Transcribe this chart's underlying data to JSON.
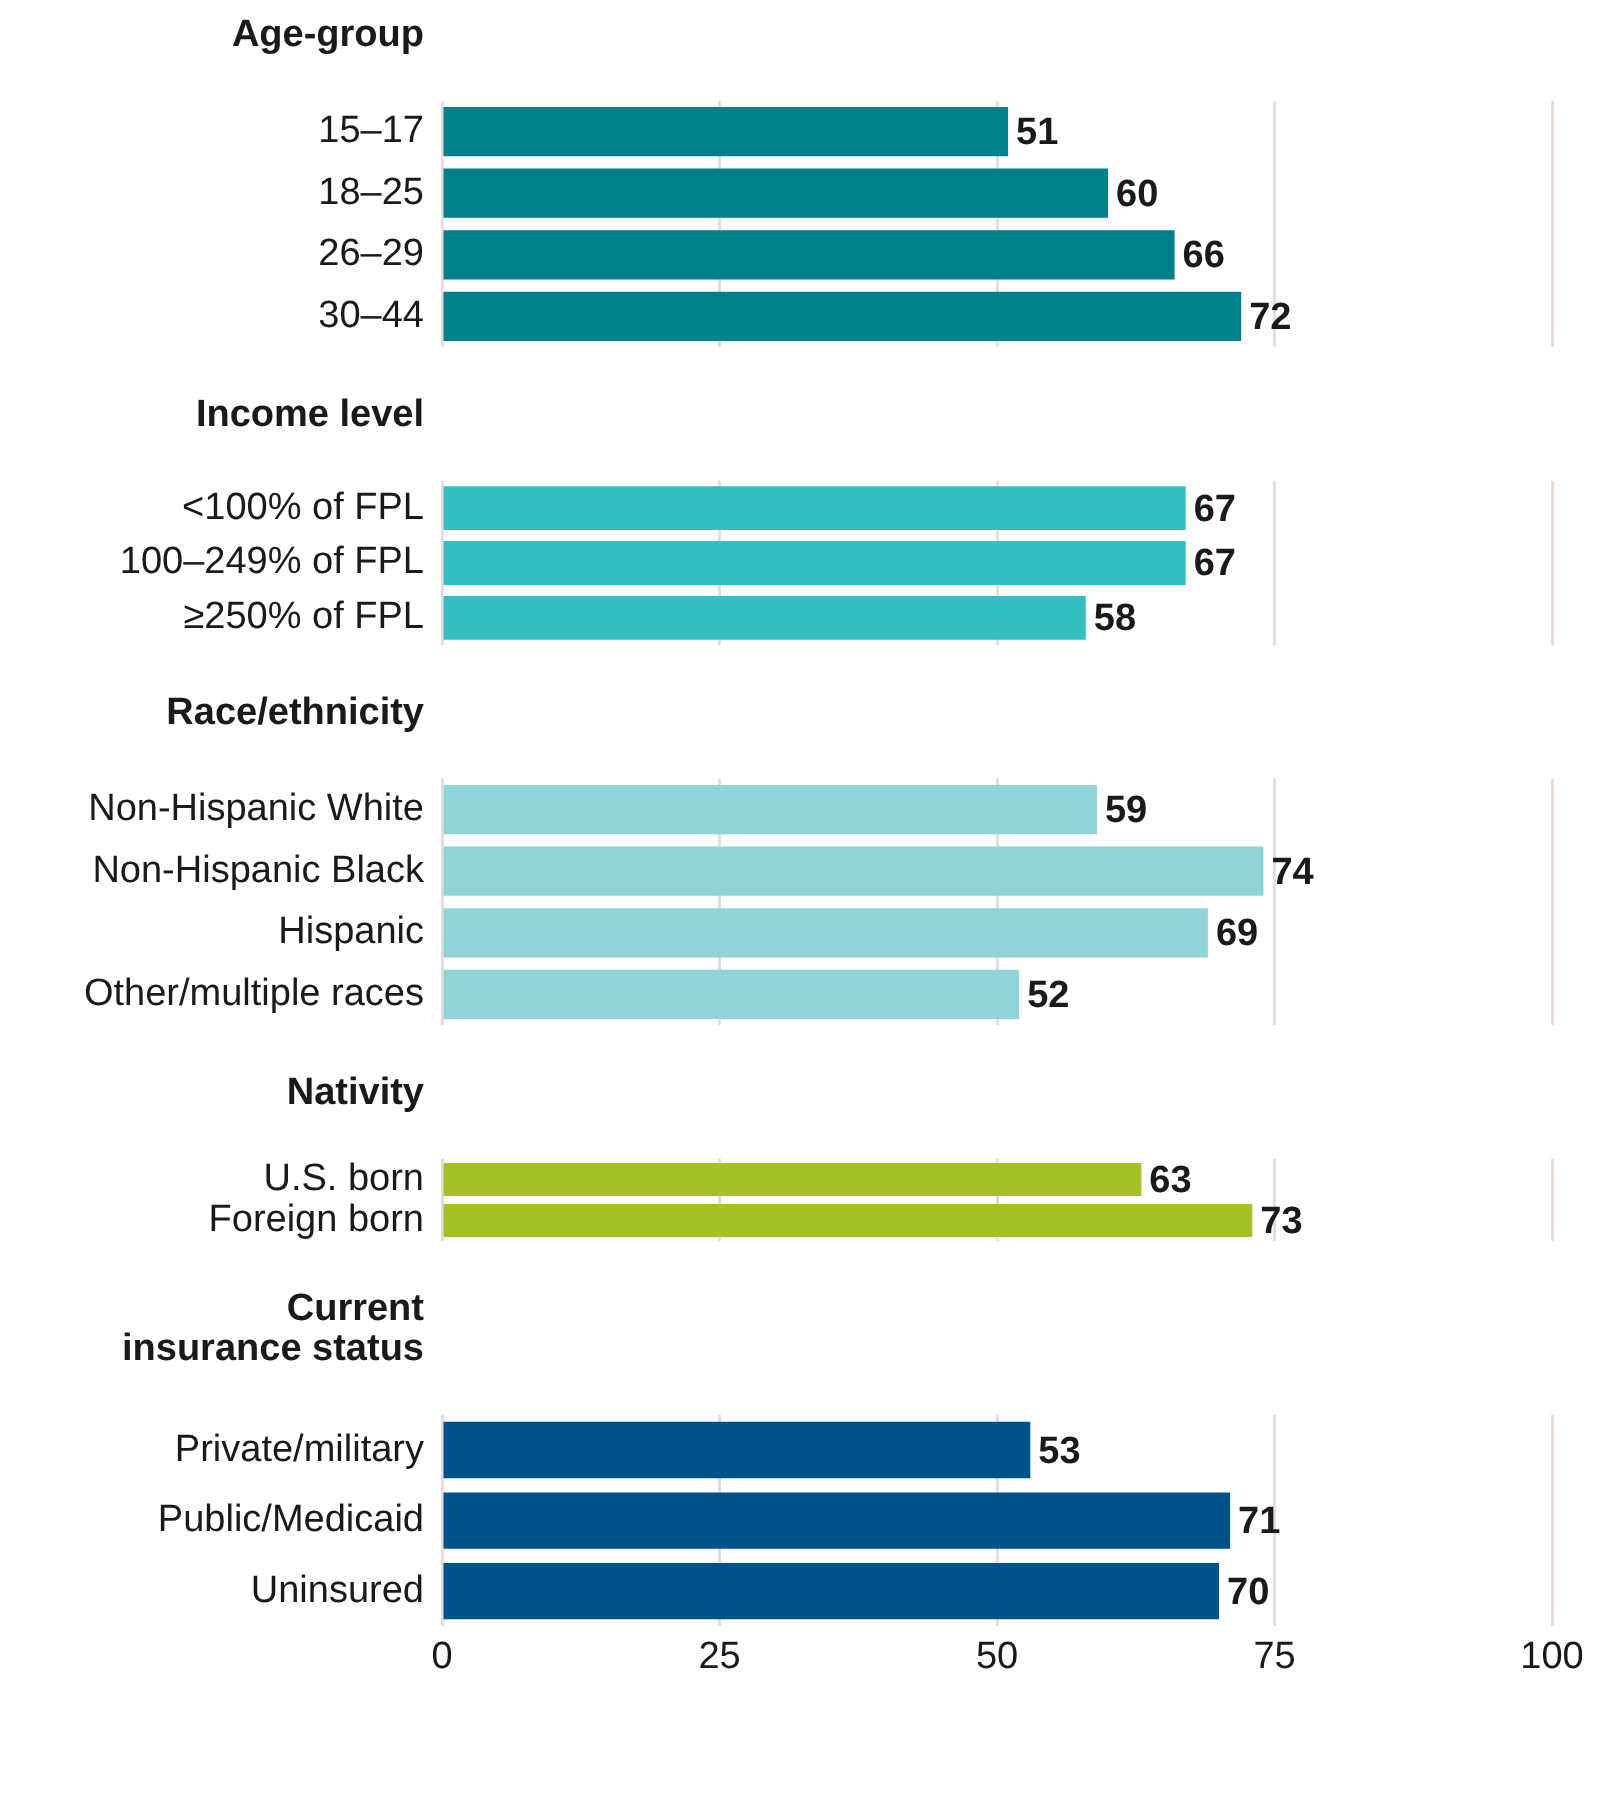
{
  "chart_data": [
    {
      "type": "bar",
      "title": "Age-group",
      "orientation": "horizontal",
      "categories": [
        "15–17",
        "18–25",
        "26–29",
        "30–44"
      ],
      "values": [
        51,
        60,
        66,
        72
      ],
      "color": "#00818a",
      "xlim": [
        0,
        100
      ],
      "xticks": [
        0,
        25,
        50,
        75,
        100
      ],
      "grid": "x",
      "data_labels": true,
      "tick_labels": "y"
    },
    {
      "type": "bar",
      "title": "Income level",
      "orientation": "horizontal",
      "categories": [
        "<100% of FPL",
        "100–249% of FPL",
        "≥250% of FPL"
      ],
      "values": [
        67,
        67,
        58
      ],
      "color": "#35bfc1",
      "xlim": [
        0,
        100
      ],
      "xticks": [
        0,
        25,
        50,
        75,
        100
      ],
      "grid": "x",
      "data_labels": true,
      "tick_labels": "y"
    },
    {
      "type": "bar",
      "title": "Race/ethnicity",
      "orientation": "horizontal",
      "categories": [
        "Non-Hispanic White",
        "Non-Hispanic Black",
        "Hispanic",
        "Other/multiple races"
      ],
      "values": [
        59,
        74,
        69,
        52
      ],
      "color": "#90d4d9",
      "xlim": [
        0,
        100
      ],
      "xticks": [
        0,
        25,
        50,
        75,
        100
      ],
      "grid": "x",
      "data_labels": true,
      "tick_labels": "y"
    },
    {
      "type": "bar",
      "title": "Nativity",
      "orientation": "horizontal",
      "categories": [
        "U.S. born",
        "Foreign born"
      ],
      "values": [
        63,
        73
      ],
      "color": "#a4c224",
      "xlim": [
        0,
        100
      ],
      "xticks": [
        0,
        25,
        50,
        75,
        100
      ],
      "grid": "x",
      "data_labels": true,
      "tick_labels": "y"
    },
    {
      "type": "bar",
      "title": "Current\ninsurance status",
      "orientation": "horizontal",
      "categories": [
        "Private/military",
        "Public/Medicaid",
        "Uninsured"
      ],
      "values": [
        53,
        71,
        70
      ],
      "color": "#005289",
      "xlim": [
        0,
        100
      ],
      "xticks": [
        0,
        25,
        50,
        75,
        100
      ],
      "grid": "x",
      "data_labels": true
    }
  ]
}
